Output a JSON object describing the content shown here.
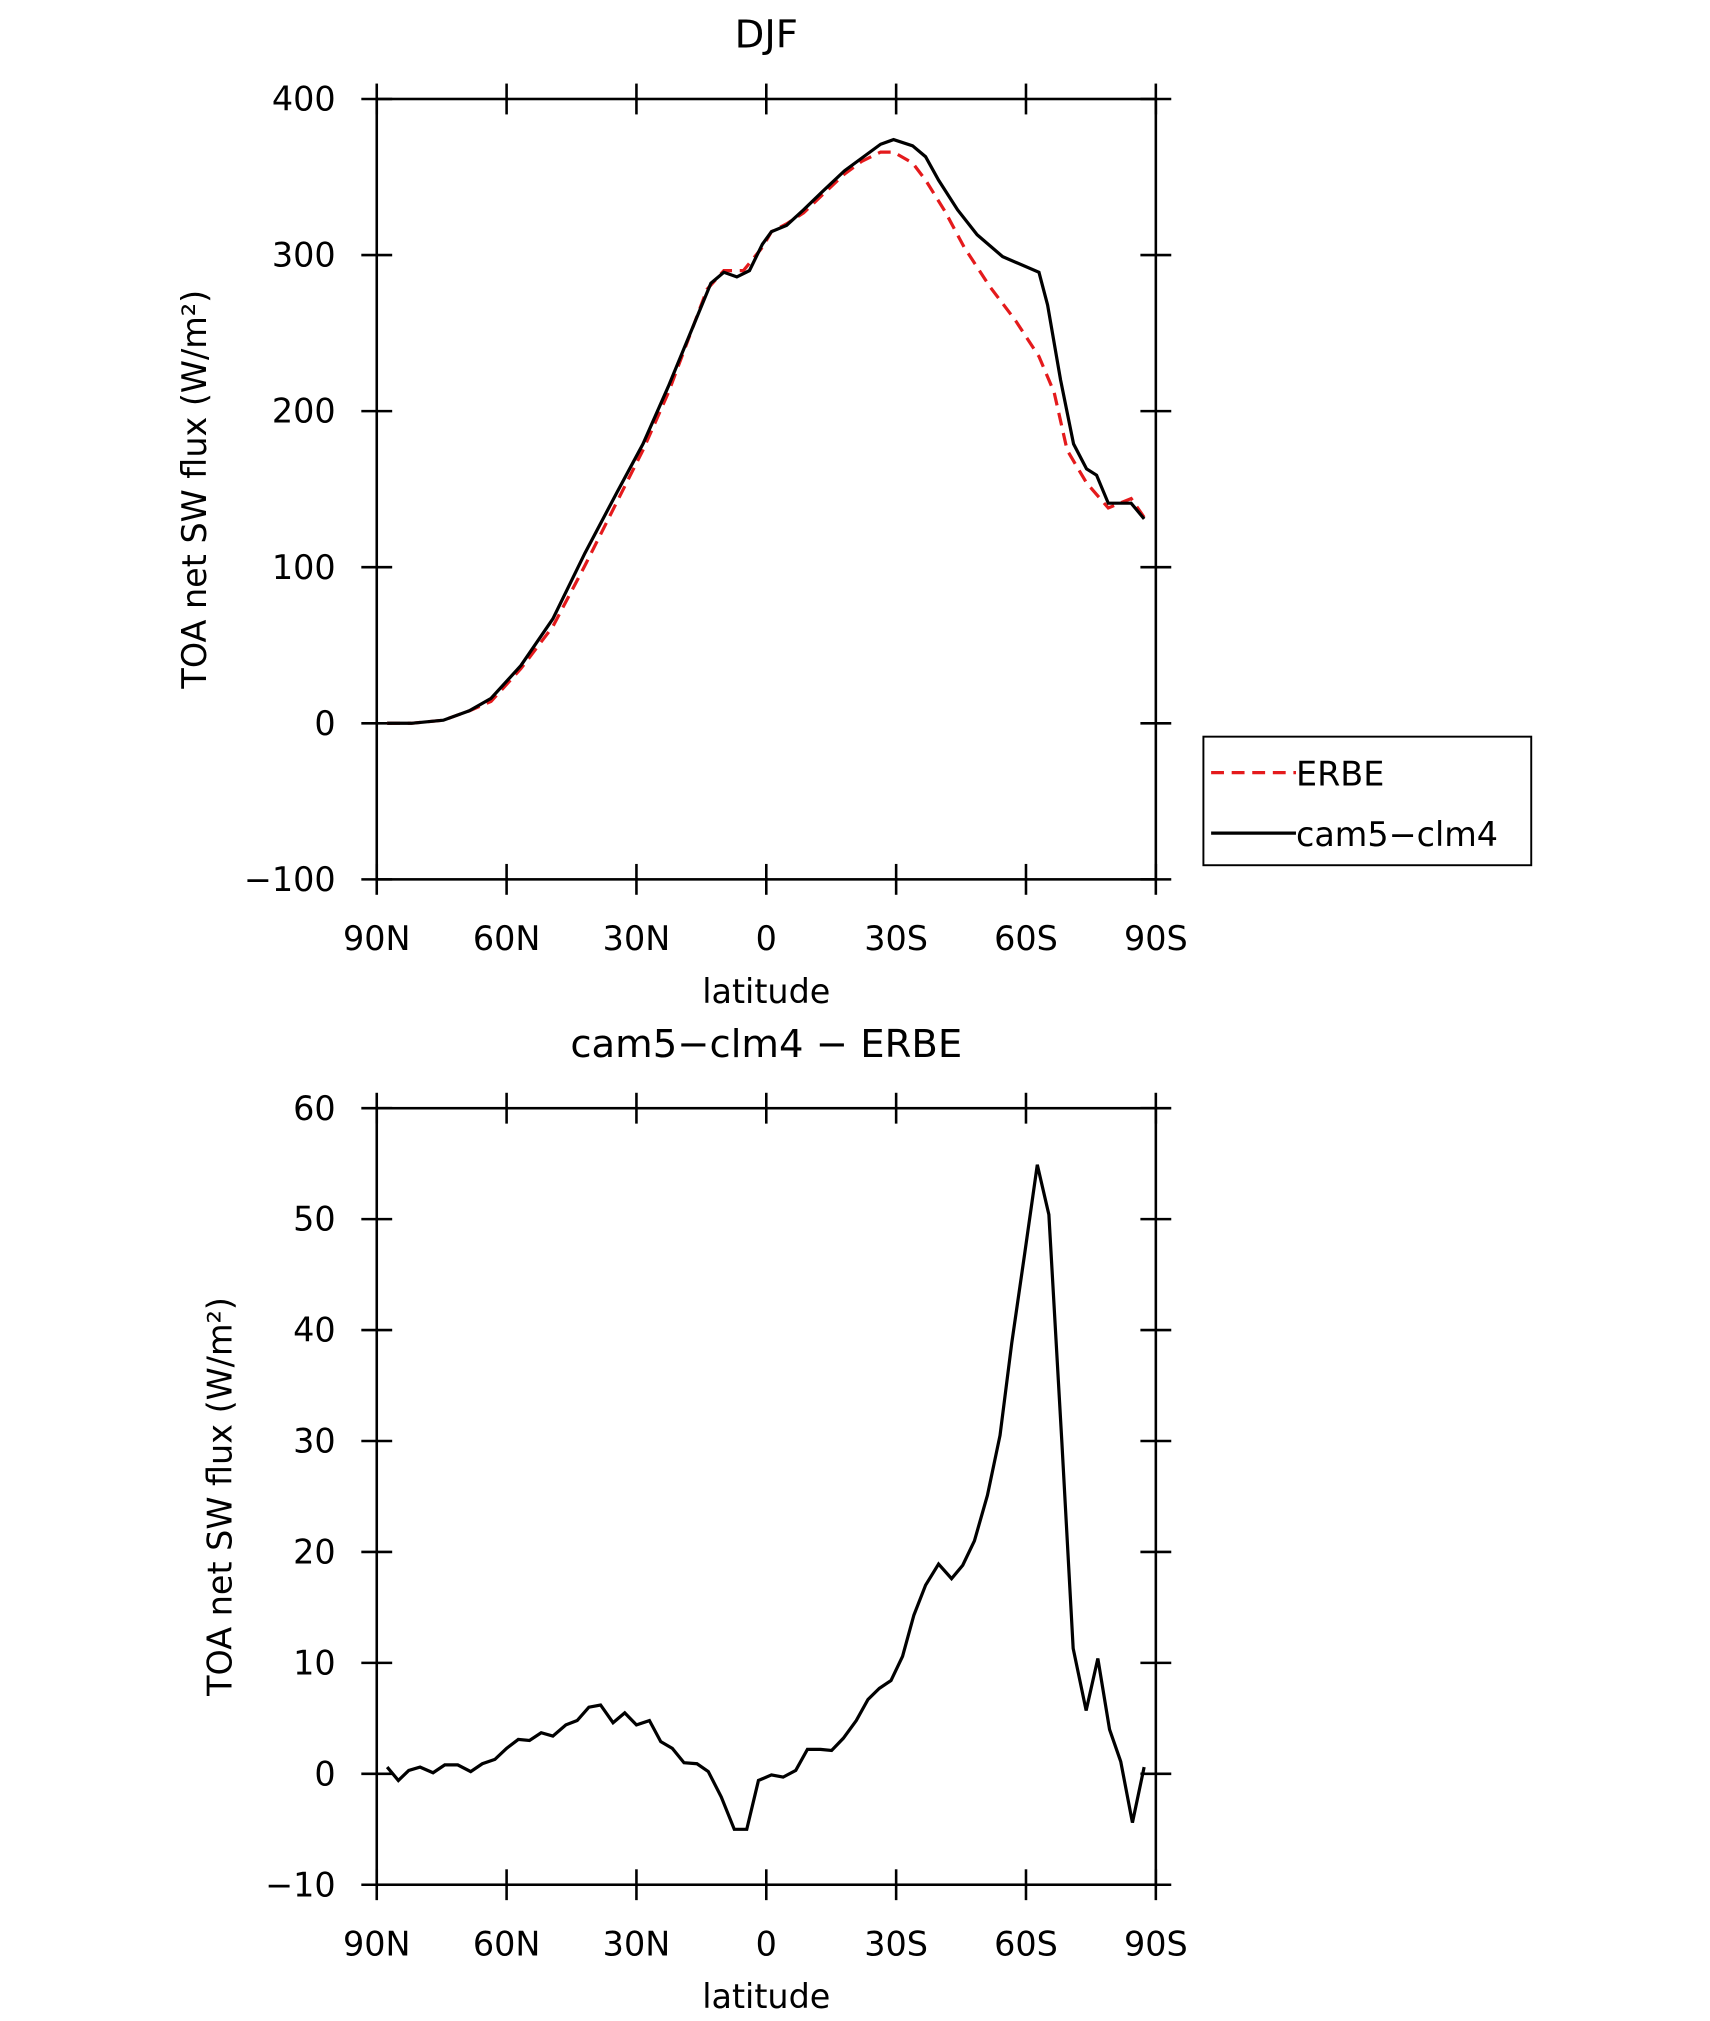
{
  "chart_data": [
    {
      "type": "line",
      "title": "DJF",
      "xlabel": "latitude",
      "ylabel": "TOA net SW flux (W/m²)",
      "xlim": [
        90,
        -90
      ],
      "ylim": [
        -100,
        400
      ],
      "xticks": [
        {
          "value": 90,
          "label": "90N"
        },
        {
          "value": 60,
          "label": "60N"
        },
        {
          "value": 30,
          "label": "30N"
        },
        0,
        {
          "value": -30,
          "label": "30S"
        },
        {
          "value": -60,
          "label": "60S"
        },
        {
          "value": -90,
          "label": "90S"
        }
      ],
      "yticks": [
        {
          "value": -100,
          "label": "−100"
        },
        0,
        100,
        200,
        300,
        400
      ],
      "legend": "outside-right",
      "series": [
        {
          "name": "ERBE",
          "color": "#e41a1c",
          "line_style": "dashed",
          "x": [
            87.6,
            82,
            74.6,
            68.6,
            63.6,
            56.7,
            49.3,
            41.9,
            34.5,
            28.5,
            22.6,
            13.7,
            9.8,
            5.3,
            0.9,
            -1.2,
            -4.7,
            -8.6,
            -13.1,
            -18.1,
            -22,
            -26.4,
            -29.4,
            -33.8,
            -36.8,
            -41.3,
            -45.7,
            -51.6,
            -57.6,
            -63,
            -66.5,
            -69.5,
            -74,
            -79,
            -84.3,
            -87.3
          ],
          "values": [
            0,
            0,
            2,
            8,
            14,
            35,
            62,
            101,
            142,
            175,
            212,
            278,
            290,
            290,
            305,
            315,
            320,
            327,
            339,
            352,
            360,
            366,
            366,
            359,
            348,
            328,
            305,
            280,
            258,
            235,
            212,
            175,
            154,
            138,
            144,
            132
          ]
        },
        {
          "name": "cam5−clm4",
          "color": "#000000",
          "line_style": "solid",
          "x": [
            87.6,
            82,
            74.6,
            68.6,
            63.6,
            56.7,
            49.3,
            41.9,
            34.5,
            28.5,
            22.6,
            12.8,
            9.8,
            6.8,
            3.9,
            0.9,
            -1.2,
            -4.7,
            -8.6,
            -13.1,
            -18.1,
            -22,
            -26.4,
            -29.4,
            -33.8,
            -36.8,
            -39.8,
            -44.2,
            -48.7,
            -54.6,
            -63,
            -65,
            -68,
            -71,
            -74,
            -76.3,
            -79,
            -84.3,
            -87.3
          ],
          "values": [
            0,
            0,
            2,
            8,
            16,
            37,
            67,
            109,
            148,
            179,
            216,
            282,
            289,
            286,
            290,
            307,
            315,
            319,
            329,
            341,
            354,
            362,
            371,
            374,
            370,
            363,
            348,
            329,
            313,
            299,
            289,
            268,
            220,
            179,
            163,
            159,
            141,
            141,
            131
          ]
        }
      ]
    },
    {
      "type": "line",
      "title": "cam5−clm4 − ERBE",
      "xlabel": "latitude",
      "ylabel": "TOA net SW flux (W/m²)",
      "xlim": [
        90,
        -90
      ],
      "ylim": [
        -10,
        60
      ],
      "xticks": [
        {
          "value": 90,
          "label": "90N"
        },
        {
          "value": 60,
          "label": "60N"
        },
        {
          "value": 30,
          "label": "30N"
        },
        0,
        {
          "value": -30,
          "label": "30S"
        },
        {
          "value": -60,
          "label": "60S"
        },
        {
          "value": -90,
          "label": "90S"
        }
      ],
      "yticks": [
        {
          "value": -10,
          "label": "−10"
        },
        0,
        10,
        20,
        30,
        40,
        50,
        60
      ],
      "series": [
        {
          "color": "#000000",
          "line_style": "solid",
          "x": [
            87.6,
            85,
            82.6,
            80,
            77,
            74.3,
            71.3,
            68.3,
            65.6,
            62.7,
            60,
            57.3,
            54.7,
            52,
            49.3,
            46.3,
            43.7,
            41,
            38.3,
            35.4,
            32.7,
            30,
            27,
            24.4,
            21.7,
            19,
            16,
            13.4,
            10.4,
            7.4,
            4.5,
            1.8,
            -1.2,
            -3.9,
            -6.8,
            -9.5,
            -12.5,
            -15.1,
            -17.8,
            -20.8,
            -23.5,
            -26.1,
            -28.8,
            -31.5,
            -34.1,
            -36.8,
            -39.8,
            -42.8,
            -45.4,
            -48.1,
            -51.1,
            -54,
            -56.7,
            -59.7,
            -62.6,
            -65.3,
            -68.3,
            -70.9,
            -73.9,
            -76.6,
            -79.3,
            -81.9,
            -84.6,
            -87.3
          ],
          "values": [
            0.6,
            -0.6,
            0.3,
            0.6,
            0.1,
            0.8,
            0.8,
            0.2,
            0.9,
            1.3,
            2.3,
            3.1,
            3.0,
            3.7,
            3.4,
            4.4,
            4.8,
            6.0,
            6.2,
            4.6,
            5.5,
            4.4,
            4.8,
            2.9,
            2.3,
            1.0,
            0.9,
            0.2,
            -2.1,
            -5.0,
            -5.0,
            -0.6,
            -0.1,
            -0.3,
            0.3,
            2.2,
            2.2,
            2.1,
            3.2,
            4.8,
            6.7,
            7.7,
            8.4,
            10.6,
            14.3,
            17.0,
            18.9,
            17.6,
            18.8,
            21.0,
            25.1,
            30.5,
            38.8,
            46.9,
            54.9,
            50.4,
            29.9,
            11.3,
            5.7,
            10.4,
            4.0,
            1.1,
            -4.4,
            0.6
          ]
        }
      ]
    }
  ]
}
